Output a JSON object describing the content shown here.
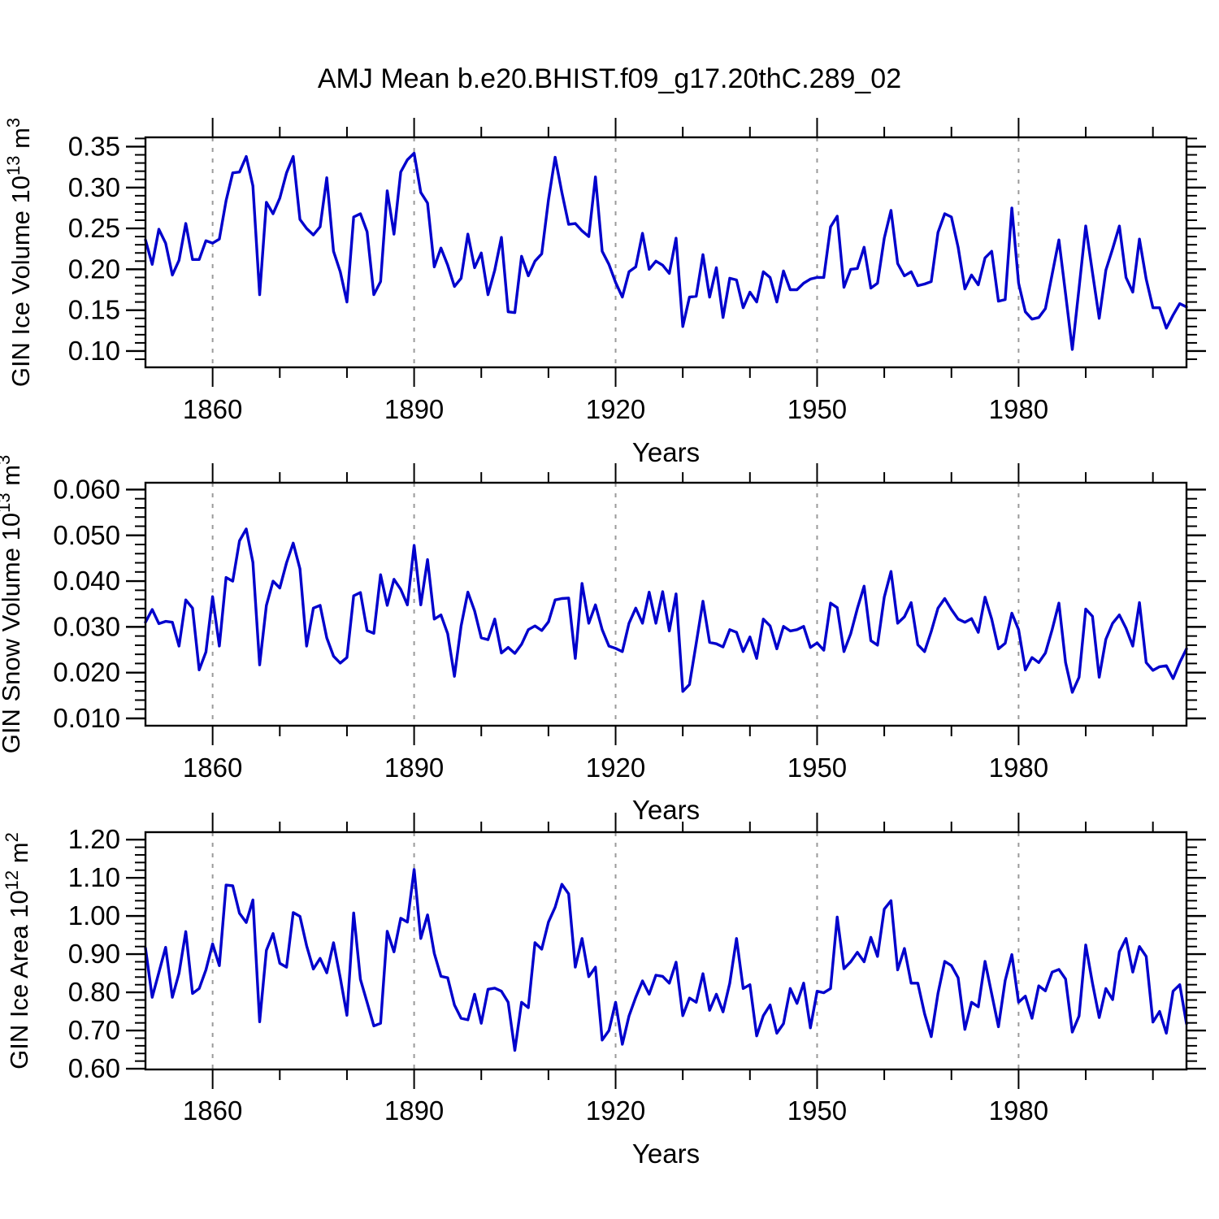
{
  "title": "AMJ Mean b.e20.BHIST.f09_g17.20thC.289_02",
  "colors": {
    "line": "#0000cc",
    "grid": "#9a9a9a",
    "axis": "#000000",
    "background": "#ffffff"
  },
  "chart_data": [
    {
      "type": "line",
      "title": "AMJ Mean b.e20.BHIST.f09_g17.20thC.289_02",
      "xlabel": "Years",
      "ylabel": "GIN Ice Volume 10^13 m^3",
      "ylabel_parts": [
        {
          "text": "GIN Ice Volume 10"
        },
        {
          "text": "13",
          "sup": true
        },
        {
          "text": " m"
        },
        {
          "text": "3",
          "sup": true
        }
      ],
      "legend": "none",
      "grid": "vertical-dashed",
      "xlim": [
        1850,
        2005
      ],
      "ylim": [
        0.0801,
        0.3614
      ],
      "xticks": [
        {
          "v": 1860,
          "label": "1860"
        },
        {
          "v": 1890,
          "label": "1890"
        },
        {
          "v": 1920,
          "label": "1920"
        },
        {
          "v": 1950,
          "label": "1950"
        },
        {
          "v": 1980,
          "label": "1980"
        }
      ],
      "x_minor_step": 10,
      "yticks": [
        {
          "v": 0.1,
          "label": "0.10"
        },
        {
          "v": 0.15,
          "label": "0.15"
        },
        {
          "v": 0.2,
          "label": "0.20"
        },
        {
          "v": 0.25,
          "label": "0.25"
        },
        {
          "v": 0.3,
          "label": "0.30"
        },
        {
          "v": 0.35,
          "label": "0.35"
        }
      ],
      "y_minor_step": 0.01,
      "x_start": 1850,
      "x_end": 2005,
      "series": [
        {
          "name": "GIN Ice Volume",
          "values": [
            0.236,
            0.206,
            0.249,
            0.232,
            0.193,
            0.211,
            0.256,
            0.212,
            0.212,
            0.235,
            0.232,
            0.237,
            0.284,
            0.318,
            0.319,
            0.338,
            0.302,
            0.169,
            0.282,
            0.268,
            0.287,
            0.318,
            0.338,
            0.261,
            0.25,
            0.242,
            0.252,
            0.312,
            0.222,
            0.197,
            0.16,
            0.264,
            0.268,
            0.246,
            0.169,
            0.185,
            0.296,
            0.243,
            0.319,
            0.334,
            0.342,
            0.294,
            0.281,
            0.203,
            0.226,
            0.205,
            0.179,
            0.189,
            0.243,
            0.202,
            0.22,
            0.169,
            0.199,
            0.239,
            0.148,
            0.147,
            0.216,
            0.192,
            0.21,
            0.219,
            0.285,
            0.337,
            0.294,
            0.255,
            0.256,
            0.247,
            0.24,
            0.313,
            0.222,
            0.206,
            0.184,
            0.166,
            0.197,
            0.203,
            0.244,
            0.2,
            0.21,
            0.205,
            0.195,
            0.238,
            0.13,
            0.166,
            0.167,
            0.218,
            0.166,
            0.202,
            0.141,
            0.189,
            0.187,
            0.153,
            0.172,
            0.16,
            0.197,
            0.19,
            0.16,
            0.198,
            0.175,
            0.175,
            0.183,
            0.188,
            0.19,
            0.19,
            0.252,
            0.265,
            0.178,
            0.2,
            0.201,
            0.227,
            0.177,
            0.183,
            0.238,
            0.272,
            0.207,
            0.192,
            0.197,
            0.18,
            0.182,
            0.185,
            0.245,
            0.268,
            0.264,
            0.227,
            0.176,
            0.193,
            0.181,
            0.214,
            0.222,
            0.161,
            0.163,
            0.275,
            0.183,
            0.148,
            0.139,
            0.141,
            0.152,
            0.194,
            0.236,
            0.17,
            0.102,
            0.177,
            0.253,
            0.196,
            0.14,
            0.199,
            0.225,
            0.253,
            0.19,
            0.172,
            0.237,
            0.188,
            0.153,
            0.153,
            0.128,
            0.144,
            0.158,
            0.154
          ]
        }
      ]
    },
    {
      "type": "line",
      "title": "",
      "xlabel": "Years",
      "ylabel": "GIN Snow Volume 10^13 m^3",
      "ylabel_parts": [
        {
          "text": "GIN Snow Volume 10"
        },
        {
          "text": "13",
          "sup": true
        },
        {
          "text": " m"
        },
        {
          "text": "3",
          "sup": true
        }
      ],
      "legend": "none",
      "grid": "vertical-dashed",
      "xlim": [
        1850,
        2005
      ],
      "ylim": [
        0.0084,
        0.0615
      ],
      "xticks": [
        {
          "v": 1860,
          "label": "1860"
        },
        {
          "v": 1890,
          "label": "1890"
        },
        {
          "v": 1920,
          "label": "1920"
        },
        {
          "v": 1950,
          "label": "1950"
        },
        {
          "v": 1980,
          "label": "1980"
        }
      ],
      "x_minor_step": 10,
      "yticks": [
        {
          "v": 0.01,
          "label": "0.010"
        },
        {
          "v": 0.02,
          "label": "0.020"
        },
        {
          "v": 0.03,
          "label": "0.030"
        },
        {
          "v": 0.04,
          "label": "0.040"
        },
        {
          "v": 0.05,
          "label": "0.050"
        },
        {
          "v": 0.06,
          "label": "0.060"
        }
      ],
      "y_minor_step": 0.002,
      "x_start": 1850,
      "x_end": 2005,
      "series": [
        {
          "name": "GIN Snow Volume",
          "values": [
            0.031,
            0.0338,
            0.0307,
            0.0312,
            0.031,
            0.0258,
            0.0359,
            0.0341,
            0.0206,
            0.0245,
            0.0366,
            0.0258,
            0.0408,
            0.04,
            0.0488,
            0.0514,
            0.0441,
            0.0217,
            0.0347,
            0.04,
            0.0385,
            0.044,
            0.0483,
            0.0427,
            0.0258,
            0.0341,
            0.0347,
            0.0276,
            0.0236,
            0.0221,
            0.0233,
            0.0368,
            0.0375,
            0.0292,
            0.0286,
            0.0414,
            0.0347,
            0.0404,
            0.0382,
            0.0348,
            0.0478,
            0.0348,
            0.0447,
            0.0317,
            0.0326,
            0.0285,
            0.0192,
            0.0302,
            0.0376,
            0.0335,
            0.0276,
            0.0272,
            0.0317,
            0.0243,
            0.0255,
            0.0242,
            0.0262,
            0.0294,
            0.0302,
            0.0292,
            0.0311,
            0.0359,
            0.0362,
            0.0363,
            0.0231,
            0.0395,
            0.0308,
            0.0348,
            0.0294,
            0.0258,
            0.0253,
            0.0246,
            0.0308,
            0.0341,
            0.0308,
            0.0376,
            0.0308,
            0.0377,
            0.0291,
            0.0372,
            0.0159,
            0.0174,
            0.0264,
            0.0356,
            0.0266,
            0.0263,
            0.0256,
            0.0294,
            0.0288,
            0.0246,
            0.0278,
            0.0231,
            0.0317,
            0.0302,
            0.0252,
            0.0301,
            0.0291,
            0.0294,
            0.0301,
            0.0255,
            0.0265,
            0.0249,
            0.0352,
            0.0342,
            0.0246,
            0.0285,
            0.034,
            0.0389,
            0.027,
            0.026,
            0.0365,
            0.0421,
            0.0308,
            0.0322,
            0.0353,
            0.0261,
            0.0246,
            0.029,
            0.0341,
            0.0362,
            0.0338,
            0.0317,
            0.031,
            0.0318,
            0.0288,
            0.0365,
            0.0317,
            0.0252,
            0.0264,
            0.033,
            0.0294,
            0.0206,
            0.0233,
            0.0222,
            0.0243,
            0.0294,
            0.0352,
            0.0222,
            0.0157,
            0.019,
            0.0339,
            0.0323,
            0.019,
            0.0273,
            0.0308,
            0.0326,
            0.0297,
            0.0258,
            0.0353,
            0.0222,
            0.0205,
            0.0213,
            0.0215,
            0.0187,
            0.0222,
            0.0252
          ]
        }
      ]
    },
    {
      "type": "line",
      "title": "",
      "xlabel": "Years",
      "ylabel": "GIN Ice Area 10^12 m^2",
      "ylabel_parts": [
        {
          "text": "GIN Ice Area 10"
        },
        {
          "text": "12",
          "sup": true
        },
        {
          "text": " m"
        },
        {
          "text": "2",
          "sup": true
        }
      ],
      "legend": "none",
      "grid": "vertical-dashed",
      "xlim": [
        1850,
        2005
      ],
      "ylim": [
        0.598,
        1.2195
      ],
      "xticks": [
        {
          "v": 1860,
          "label": "1860"
        },
        {
          "v": 1890,
          "label": "1890"
        },
        {
          "v": 1920,
          "label": "1920"
        },
        {
          "v": 1950,
          "label": "1950"
        },
        {
          "v": 1980,
          "label": "1980"
        }
      ],
      "x_minor_step": 10,
      "yticks": [
        {
          "v": 0.6,
          "label": "0.60"
        },
        {
          "v": 0.7,
          "label": "0.70"
        },
        {
          "v": 0.8,
          "label": "0.80"
        },
        {
          "v": 0.9,
          "label": "0.90"
        },
        {
          "v": 1.0,
          "label": "1.00"
        },
        {
          "v": 1.1,
          "label": "1.10"
        },
        {
          "v": 1.2,
          "label": "1.20"
        }
      ],
      "y_minor_step": 0.02,
      "x_start": 1850,
      "x_end": 2005,
      "series": [
        {
          "name": "GIN Ice Area",
          "values": [
            0.916,
            0.787,
            0.852,
            0.918,
            0.787,
            0.85,
            0.959,
            0.797,
            0.81,
            0.859,
            0.927,
            0.87,
            1.081,
            1.079,
            1.007,
            0.983,
            1.042,
            0.723,
            0.91,
            0.954,
            0.876,
            0.866,
            1.009,
            0.999,
            0.922,
            0.861,
            0.889,
            0.851,
            0.93,
            0.838,
            0.74,
            1.008,
            0.834,
            0.774,
            0.712,
            0.719,
            0.96,
            0.906,
            0.994,
            0.984,
            1.122,
            0.941,
            1.003,
            0.902,
            0.842,
            0.838,
            0.767,
            0.732,
            0.728,
            0.795,
            0.719,
            0.808,
            0.811,
            0.803,
            0.774,
            0.648,
            0.774,
            0.76,
            0.93,
            0.913,
            0.984,
            1.023,
            1.083,
            1.058,
            0.866,
            0.941,
            0.841,
            0.866,
            0.675,
            0.7,
            0.774,
            0.664,
            0.738,
            0.787,
            0.83,
            0.795,
            0.845,
            0.842,
            0.824,
            0.879,
            0.739,
            0.785,
            0.774,
            0.849,
            0.753,
            0.795,
            0.749,
            0.824,
            0.941,
            0.81,
            0.82,
            0.686,
            0.739,
            0.767,
            0.693,
            0.718,
            0.81,
            0.771,
            0.824,
            0.707,
            0.803,
            0.799,
            0.81,
            0.997,
            0.862,
            0.88,
            0.905,
            0.88,
            0.944,
            0.894,
            1.018,
            1.04,
            0.859,
            0.915,
            0.824,
            0.824,
            0.744,
            0.684,
            0.797,
            0.881,
            0.87,
            0.838,
            0.703,
            0.774,
            0.762,
            0.881,
            0.796,
            0.71,
            0.831,
            0.899,
            0.774,
            0.79,
            0.732,
            0.817,
            0.804,
            0.853,
            0.86,
            0.835,
            0.696,
            0.738,
            0.924,
            0.824,
            0.734,
            0.81,
            0.781,
            0.906,
            0.941,
            0.853,
            0.92,
            0.894,
            0.722,
            0.75,
            0.693,
            0.803,
            0.82,
            0.718
          ]
        }
      ]
    }
  ]
}
